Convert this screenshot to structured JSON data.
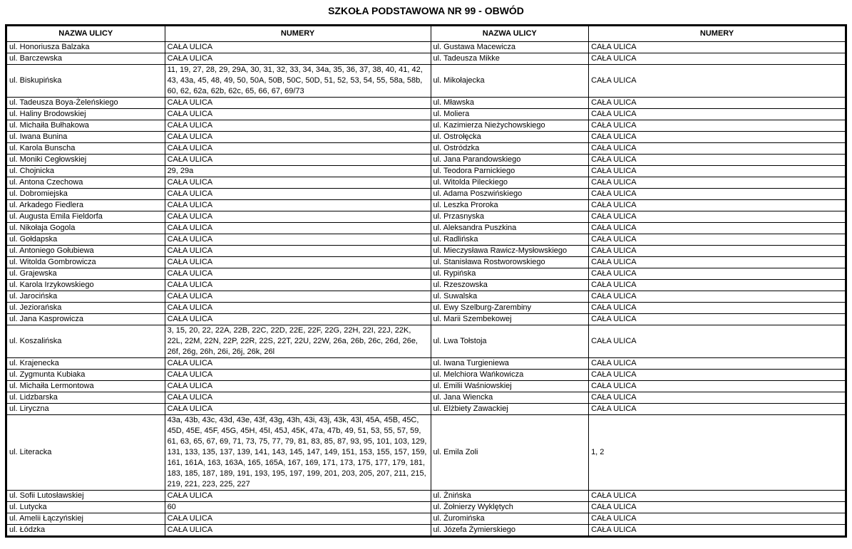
{
  "title": "SZKOŁA PODSTAWOWA NR 99 - OBWÓD",
  "table": {
    "headers": [
      "NAZWA ULICY",
      "NUMERY",
      "NAZWA ULICY",
      "NUMERY"
    ],
    "rows": [
      {
        "left_street": "ul. Honoriusza Balzaka",
        "left_numbers": "CAŁA ULICA",
        "right_street": "ul. Gustawa Macewicza",
        "right_numbers": "CAŁA ULICA"
      },
      {
        "left_street": "ul. Barczewska",
        "left_numbers": "CAŁA ULICA",
        "right_street": "ul. Tadeusza Mikke",
        "right_numbers": "CAŁA ULICA"
      },
      {
        "left_street": "ul. Biskupińska",
        "left_numbers": "11, 19, 27, 28, 29, 29A, 30, 31, 32, 33, 34, 34a, 35, 36, 37, 38, 40, 41, 42, 43, 43a, 45, 48, 49, 50, 50A, 50B, 50C, 50D, 51, 52, 53, 54, 55, 58a, 58b, 60, 62, 62a, 62b, 62c, 65, 66, 67, 69/73",
        "right_street": "ul. Mikołajecka",
        "right_numbers": "CAŁA ULICA"
      },
      {
        "left_street": "ul. Tadeusza Boya-Żeleńskiego",
        "left_numbers": "CAŁA ULICA",
        "right_street": "ul. Mławska",
        "right_numbers": "CAŁA ULICA"
      },
      {
        "left_street": "ul. Haliny Brodowskiej",
        "left_numbers": "CAŁA ULICA",
        "right_street": "ul. Moliera",
        "right_numbers": "CAŁA ULICA"
      },
      {
        "left_street": "ul. Michaiła Bułhakowa",
        "left_numbers": "CAŁA ULICA",
        "right_street": "ul. Kazimierza Nieżychowskiego",
        "right_numbers": "CAŁA ULICA"
      },
      {
        "left_street": "ul. Iwana Bunina",
        "left_numbers": "CAŁA ULICA",
        "right_street": "ul. Ostrołęcka",
        "right_numbers": "CAŁA ULICA"
      },
      {
        "left_street": "ul. Karola Bunscha",
        "left_numbers": "CAŁA ULICA",
        "right_street": "ul. Ostródzka",
        "right_numbers": "CAŁA ULICA"
      },
      {
        "left_street": "ul. Moniki Cegłowskiej",
        "left_numbers": "CAŁA ULICA",
        "right_street": "ul. Jana Parandowskiego",
        "right_numbers": "CAŁA ULICA"
      },
      {
        "left_street": "ul. Chojnicka",
        "left_numbers": "29, 29a",
        "right_street": "ul. Teodora Parnickiego",
        "right_numbers": "CAŁA ULICA"
      },
      {
        "left_street": "ul. Antona Czechowa",
        "left_numbers": "CAŁA ULICA",
        "right_street": "ul. Witolda Pileckiego",
        "right_numbers": "CAŁA ULICA"
      },
      {
        "left_street": "ul. Dobromiejska",
        "left_numbers": "CAŁA ULICA",
        "right_street": "ul. Adama Poszwińskiego",
        "right_numbers": "CAŁA ULICA"
      },
      {
        "left_street": "ul. Arkadego Fiedlera",
        "left_numbers": "CAŁA ULICA",
        "right_street": "ul. Leszka Proroka",
        "right_numbers": "CAŁA ULICA"
      },
      {
        "left_street": "ul. Augusta Emila Fieldorfa",
        "left_numbers": "CAŁA ULICA",
        "right_street": "ul. Przasnyska",
        "right_numbers": "CAŁA ULICA"
      },
      {
        "left_street": "ul. Nikołaja Gogola",
        "left_numbers": "CAŁA ULICA",
        "right_street": "ul. Aleksandra Puszkina",
        "right_numbers": "CAŁA ULICA"
      },
      {
        "left_street": "ul. Gołdapska",
        "left_numbers": "CAŁA ULICA",
        "right_street": "ul. Radlińska",
        "right_numbers": "CAŁA ULICA"
      },
      {
        "left_street": "ul. Antoniego Gołubiewa",
        "left_numbers": "CAŁA ULICA",
        "right_street": "ul. Mieczysława Rawicz-Mysłowskiego",
        "right_numbers": "CAŁA ULICA"
      },
      {
        "left_street": "ul. Witolda Gombrowicza",
        "left_numbers": "CAŁA ULICA",
        "right_street": "ul. Stanisława Rostworowskiego",
        "right_numbers": "CAŁA ULICA"
      },
      {
        "left_street": "ul. Grajewska",
        "left_numbers": "CAŁA ULICA",
        "right_street": "ul. Rypińska",
        "right_numbers": "CAŁA ULICA"
      },
      {
        "left_street": "ul. Karola Irzykowskiego",
        "left_numbers": "CAŁA ULICA",
        "right_street": "ul. Rzeszowska",
        "right_numbers": "CAŁA ULICA"
      },
      {
        "left_street": "ul. Jarocińska",
        "left_numbers": "CAŁA ULICA",
        "right_street": "ul. Suwalska",
        "right_numbers": "CAŁA ULICA"
      },
      {
        "left_street": "ul. Jeziorańska",
        "left_numbers": "CAŁA ULICA",
        "right_street": "ul. Ewy Szelburg-Zarembiny",
        "right_numbers": "CAŁA ULICA"
      },
      {
        "left_street": "ul. Jana Kasprowicza",
        "left_numbers": "CAŁA ULICA",
        "right_street": "ul. Marii Szembekowej",
        "right_numbers": "CAŁA ULICA"
      },
      {
        "left_street": "ul. Koszalińska",
        "left_numbers": "3, 15, 20, 22, 22A, 22B, 22C, 22D, 22E, 22F, 22G, 22H, 22I, 22J, 22K, 22L, 22M, 22N, 22P, 22R, 22S, 22T, 22U, 22W, 26a, 26b, 26c, 26d, 26e, 26f, 26g, 26h, 26i, 26j, 26k, 26l",
        "right_street": "ul. Lwa Tołstoja",
        "right_numbers": "CAŁA ULICA"
      },
      {
        "left_street": "ul. Krajenecka",
        "left_numbers": "CAŁA ULICA",
        "right_street": "ul. Iwana Turgieniewa",
        "right_numbers": "CAŁA ULICA"
      },
      {
        "left_street": "ul. Zygmunta Kubiaka",
        "left_numbers": "CAŁA ULICA",
        "right_street": "ul. Melchiora Wańkowicza",
        "right_numbers": "CAŁA ULICA"
      },
      {
        "left_street": "ul. Michaiła Lermontowa",
        "left_numbers": "CAŁA ULICA",
        "right_street": "ul. Emilii Waśniowskiej",
        "right_numbers": "CAŁA ULICA"
      },
      {
        "left_street": "ul. Lidzbarska",
        "left_numbers": "CAŁA ULICA",
        "right_street": "ul. Jana Wiencka",
        "right_numbers": "CAŁA ULICA"
      },
      {
        "left_street": "ul. Liryczna",
        "left_numbers": "CAŁA ULICA",
        "right_street": "ul. Elżbiety Zawackiej",
        "right_numbers": "CAŁA ULICA"
      },
      {
        "left_street": "ul. Literacka",
        "left_numbers": "43a, 43b, 43c, 43d, 43e, 43f, 43g, 43h, 43i, 43j, 43k, 43l, 45A, 45B, 45C, 45D, 45E, 45F, 45G, 45H, 45I, 45J, 45K, 47a, 47b, 49, 51, 53, 55, 57, 59, 61, 63, 65, 67, 69, 71, 73, 75, 77, 79, 81, 83, 85, 87, 93, 95, 101, 103, 129, 131, 133, 135, 137, 139, 141, 143, 145, 147, 149, 151, 153, 155, 157, 159, 161, 161A, 163, 163A, 165, 165A, 167, 169, 171, 173, 175, 177, 179, 181, 183, 185, 187, 189, 191, 193, 195, 197, 199, 201, 203, 205, 207, 211, 215, 219, 221, 223, 225, 227",
        "right_street": "ul. Emila Zoli",
        "right_numbers": "1, 2"
      },
      {
        "left_street": "ul. Sofii Lutosławskiej",
        "left_numbers": "CAŁA ULICA",
        "right_street": "ul. Żnińska",
        "right_numbers": "CAŁA ULICA"
      },
      {
        "left_street": "ul. Lutycka",
        "left_numbers": "60",
        "right_street": "ul. Żołnierzy Wyklętych",
        "right_numbers": "CAŁA ULICA"
      },
      {
        "left_street": "ul. Amelii Łączyńskiej",
        "left_numbers": "CAŁA ULICA",
        "right_street": "ul. Żuromińska",
        "right_numbers": "CAŁA ULICA"
      },
      {
        "left_street": "ul. Łódzka",
        "left_numbers": "CAŁA ULICA",
        "right_street": "ul. Józefa Żymierskiego",
        "right_numbers": "CAŁA ULICA"
      }
    ]
  }
}
